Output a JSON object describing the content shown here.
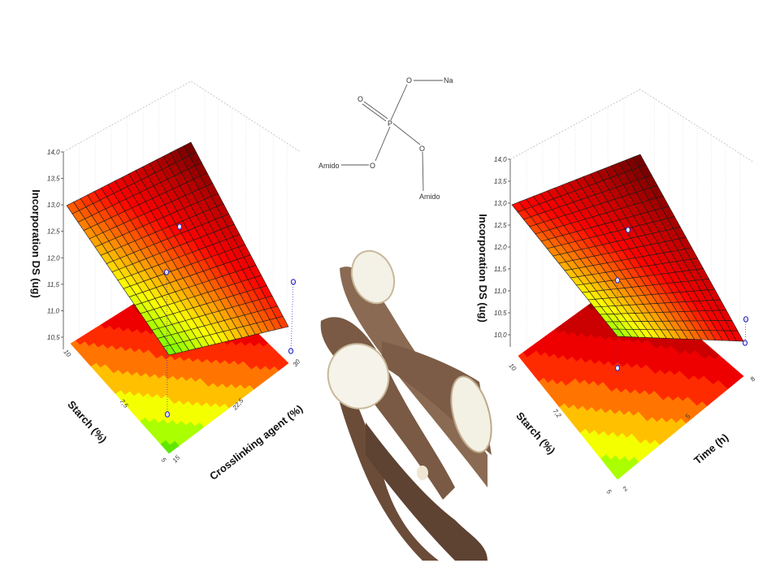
{
  "chart_data": [
    {
      "type": "surface3d",
      "zlabel": "Incorporation DS (ug)",
      "xlabel": "Starch (%)",
      "ylabel": "Crosslinking agent (%)",
      "z_ticks": [
        "14,0",
        "13,5",
        "13,0",
        "12,5",
        "12,0",
        "11,5",
        "11,0",
        "10,5"
      ],
      "x_ticks": [
        "10",
        "7,5",
        "5"
      ],
      "y_ticks": [
        "15",
        "22,5",
        "30"
      ],
      "zlim": [
        10.3,
        14.0
      ],
      "xlim": [
        5,
        10
      ],
      "ylim": [
        15,
        30
      ],
      "grid": true,
      "colormap": [
        "#6b0000",
        "#c00000",
        "#ff0000",
        "#ff8000",
        "#ffff00",
        "#80ff00",
        "#00a000",
        "#005000"
      ],
      "corner_values": {
        "starch10_cross15": 14.0,
        "starch10_cross30": 12.8,
        "starch5_cross15": 11.8,
        "starch5_cross30": 10.6
      },
      "has_floor_contour": true
    },
    {
      "type": "surface3d",
      "zlabel": "Incorporation DS (ug)",
      "xlabel": "Starch (%)",
      "ylabel": "Time (h)",
      "z_ticks": [
        "14,0",
        "13,5",
        "13,0",
        "12,5",
        "12,0",
        "11,5",
        "11,0",
        "10,5",
        "10,0"
      ],
      "x_ticks": [
        "10",
        "7,2",
        "5"
      ],
      "y_ticks": [
        "2",
        "5",
        "8"
      ],
      "zlim": [
        9.8,
        14.0
      ],
      "xlim": [
        5,
        10
      ],
      "ylim": [
        2,
        8
      ],
      "grid": true,
      "colormap": [
        "#6b0000",
        "#c00000",
        "#ff0000",
        "#ff8000",
        "#ffff00",
        "#80ff00",
        "#00a000",
        "#005000"
      ],
      "corner_values": {
        "starch10_time2": 14.0,
        "starch10_time8": 13.0,
        "starch5_time2": 12.0,
        "starch5_time8": 10.0
      },
      "has_floor_contour": true
    }
  ],
  "structure": {
    "atoms": {
      "na": "Na",
      "o1": "O",
      "o2": "O",
      "o3": "O",
      "o4": "O",
      "p": "P",
      "amido1": "Amido",
      "amido2": "Amido"
    }
  },
  "photo": {
    "subject": "cassava-roots"
  }
}
